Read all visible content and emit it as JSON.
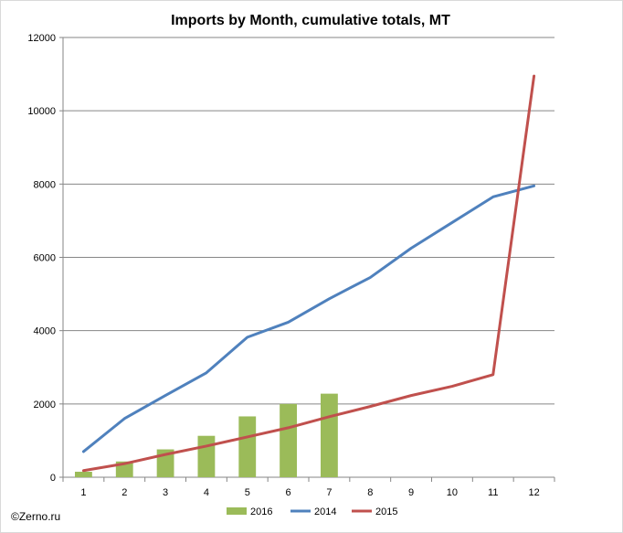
{
  "credit": "©Zerno.ru",
  "chart_data": {
    "type": "bar+line",
    "title": "Imports by Month, cumulative totals, MT",
    "xlabel": "",
    "ylabel": "",
    "categories": [
      "1",
      "2",
      "3",
      "4",
      "5",
      "6",
      "7",
      "8",
      "9",
      "10",
      "11",
      "12"
    ],
    "ylim": [
      0,
      12000
    ],
    "yticks": [
      0,
      2000,
      4000,
      6000,
      8000,
      10000,
      12000
    ],
    "grid": true,
    "legend_position": "bottom",
    "series": [
      {
        "name": "2016",
        "kind": "bar",
        "color": "#9bbb59",
        "values": [
          150,
          430,
          760,
          1130,
          1660,
          2000,
          2280,
          null,
          null,
          null,
          null,
          null
        ]
      },
      {
        "name": "2014",
        "kind": "line",
        "color": "#4f81bd",
        "values": [
          700,
          1600,
          2230,
          2850,
          3820,
          4230,
          4870,
          5450,
          6250,
          6950,
          7650,
          7950
        ]
      },
      {
        "name": "2015",
        "kind": "line",
        "color": "#c0504d",
        "values": [
          180,
          370,
          620,
          850,
          1100,
          1350,
          1650,
          1930,
          2230,
          2480,
          2800,
          10950
        ]
      }
    ]
  }
}
